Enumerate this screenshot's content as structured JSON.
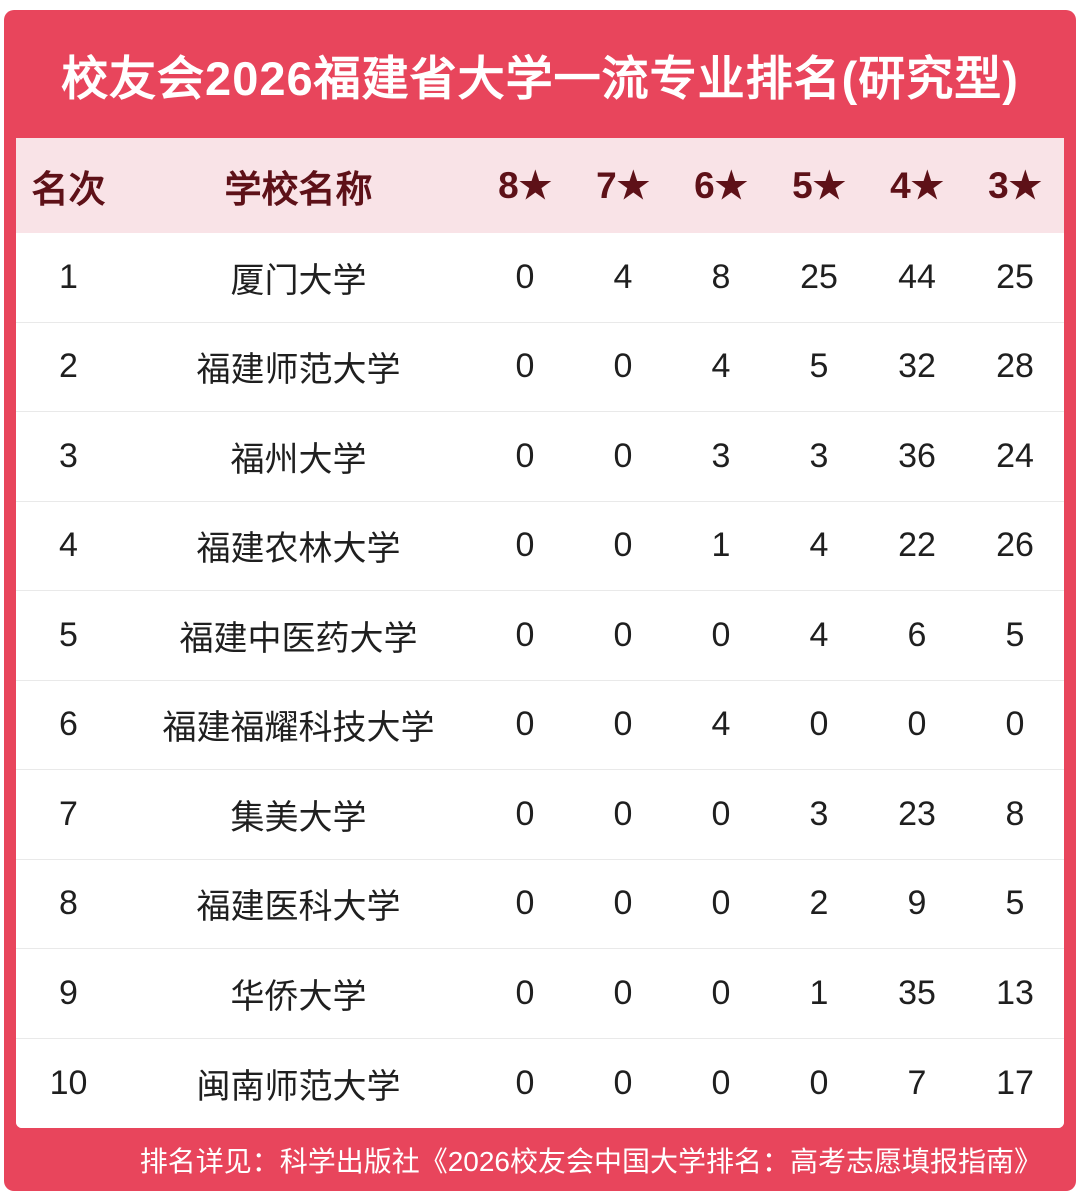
{
  "chart_data": {
    "type": "table",
    "title": "校友会2026福建省大学一流专业排名(研究型)",
    "columns": [
      "名次",
      "学校名称",
      "8★",
      "7★",
      "6★",
      "5★",
      "4★",
      "3★"
    ],
    "rows": [
      [
        "1",
        "厦门大学",
        "0",
        "4",
        "8",
        "25",
        "44",
        "25"
      ],
      [
        "2",
        "福建师范大学",
        "0",
        "0",
        "4",
        "5",
        "32",
        "28"
      ],
      [
        "3",
        "福州大学",
        "0",
        "0",
        "3",
        "3",
        "36",
        "24"
      ],
      [
        "4",
        "福建农林大学",
        "0",
        "0",
        "1",
        "4",
        "22",
        "26"
      ],
      [
        "5",
        "福建中医药大学",
        "0",
        "0",
        "0",
        "4",
        "6",
        "5"
      ],
      [
        "6",
        "福建福耀科技大学",
        "0",
        "0",
        "4",
        "0",
        "0",
        "0"
      ],
      [
        "7",
        "集美大学",
        "0",
        "0",
        "0",
        "3",
        "23",
        "8"
      ],
      [
        "8",
        "福建医科大学",
        "0",
        "0",
        "0",
        "2",
        "9",
        "5"
      ],
      [
        "9",
        "华侨大学",
        "0",
        "0",
        "0",
        "1",
        "35",
        "13"
      ],
      [
        "10",
        "闽南师范大学",
        "0",
        "0",
        "0",
        "0",
        "7",
        "17"
      ]
    ]
  },
  "footer_note": "排名详见：科学出版社《2026校友会中国大学排名：高考志愿填报指南》",
  "colors": {
    "accent_red": "#E8455C",
    "header_row_pink": "#F9E3E7",
    "header_text_maroon": "#5E1118",
    "body_text": "#1F1F1F",
    "title_text": "#FFFFFF",
    "row_separator": "#E9E9E9"
  }
}
